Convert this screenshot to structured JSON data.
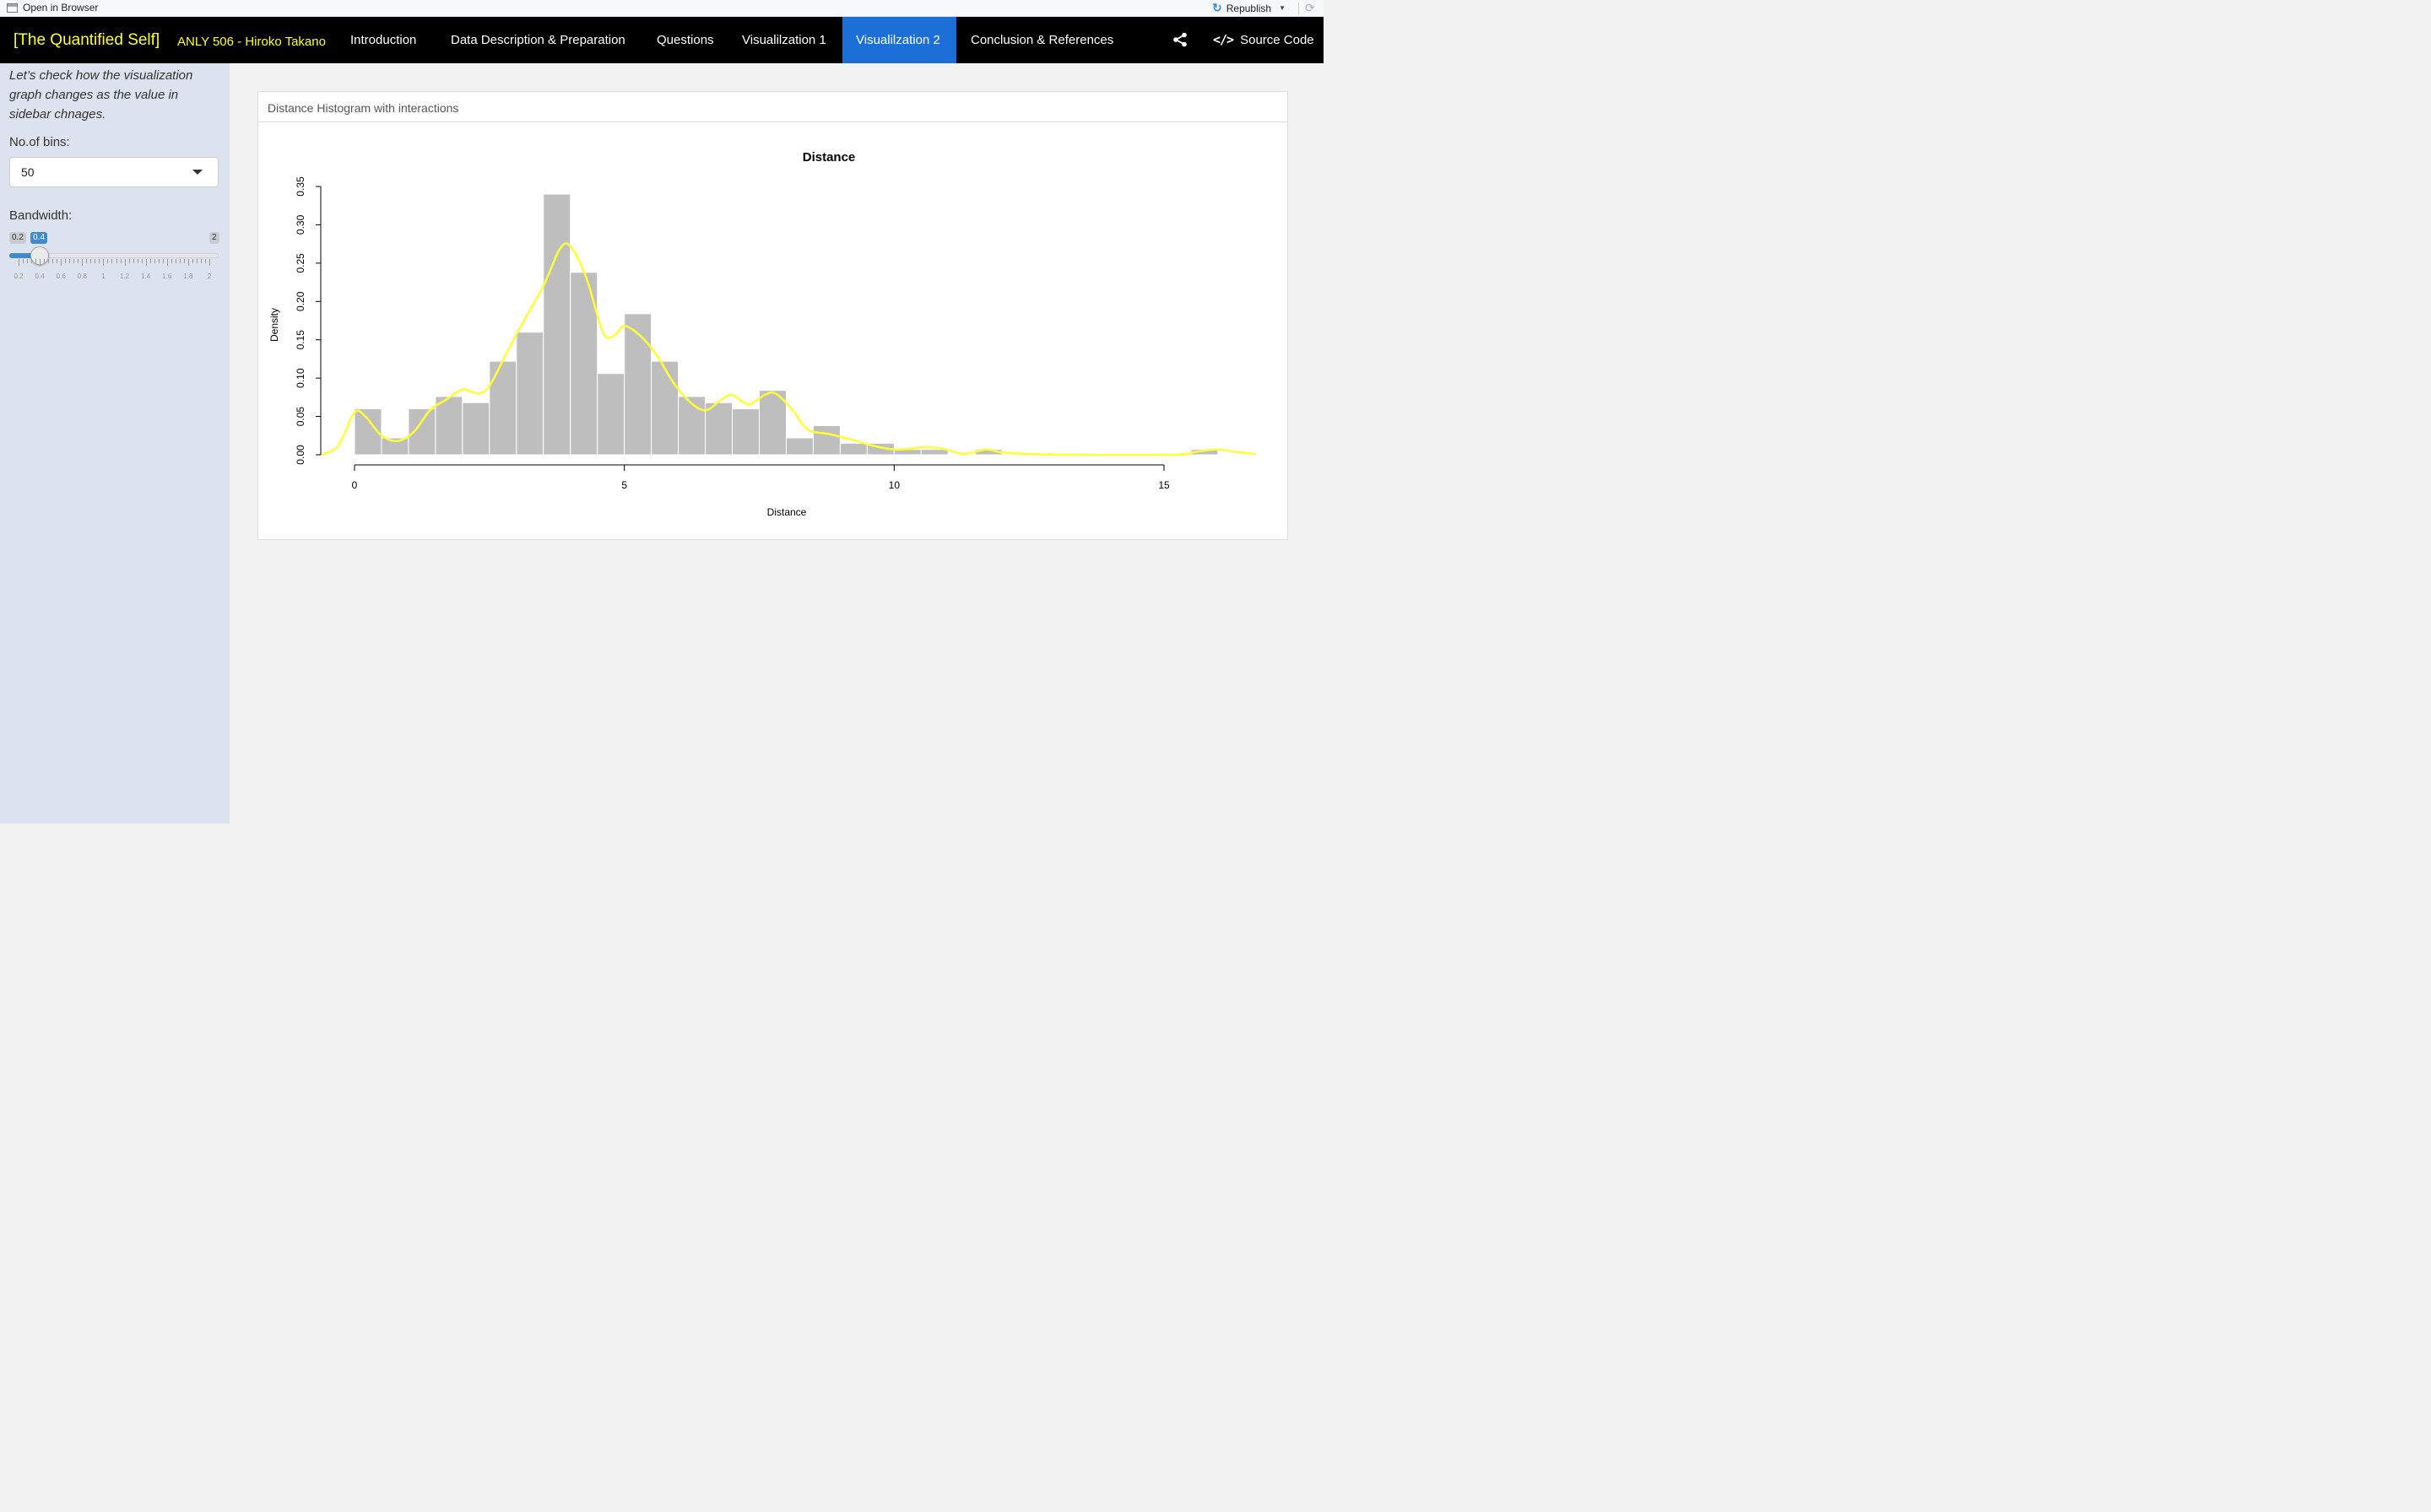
{
  "viewer": {
    "open_label": "Open in Browser",
    "republish_label": "Republish",
    "icons": [
      "open-window-icon",
      "republish-icon",
      "caret-down-icon",
      "refresh-icon"
    ]
  },
  "navbar": {
    "brand": "[The Quantified Self]",
    "subtitle": "ANLY 506 - Hiroko Takano",
    "items": [
      {
        "label": "Introduction"
      },
      {
        "label": "Data Description & Preparation"
      },
      {
        "label": "Questions"
      },
      {
        "label": "Visualilzation 1"
      },
      {
        "label": "Visualilzation 2",
        "active": true
      },
      {
        "label": "Conclusion & References"
      }
    ],
    "source_label": "Source Code",
    "colors": {
      "bg": "#000000",
      "brand": "#ffff33",
      "active": "#1c6fd6"
    }
  },
  "sidebar": {
    "intro": "Let’s check how the visualization graph changes as the value in sidebar chnages.",
    "bins_label": "No.of bins:",
    "bins_value": "50",
    "bandwidth_label": "Bandwidth:",
    "slider": {
      "min": 0.2,
      "max": 2,
      "value": 0.4,
      "min_label": "0.2",
      "max_label": "2",
      "value_label": "0.4",
      "tick_labels": [
        "0.2",
        "0.4",
        "0.6",
        "0.8",
        "1",
        "1.2",
        "1.4",
        "1.6",
        "1.8",
        "2"
      ]
    }
  },
  "card": {
    "title": "Distance Histogram with interactions"
  },
  "chart_data": {
    "type": "bar",
    "title": "Distance",
    "xlabel": "Distance",
    "ylabel": "Density",
    "xlim": [
      0,
      16
    ],
    "ylim": [
      0,
      0.35
    ],
    "x_ticks": [
      0,
      5,
      10,
      15
    ],
    "y_ticks": [
      "0.00",
      "0.05",
      "0.10",
      "0.15",
      "0.20",
      "0.25",
      "0.30",
      "0.35"
    ],
    "bin_width": 0.5,
    "bins": [
      {
        "x0": 0.0,
        "value": 0.06
      },
      {
        "x0": 0.5,
        "value": 0.022
      },
      {
        "x0": 1.0,
        "value": 0.06
      },
      {
        "x0": 1.5,
        "value": 0.076
      },
      {
        "x0": 2.0,
        "value": 0.068
      },
      {
        "x0": 2.5,
        "value": 0.122
      },
      {
        "x0": 3.0,
        "value": 0.16
      },
      {
        "x0": 3.5,
        "value": 0.34
      },
      {
        "x0": 4.0,
        "value": 0.238
      },
      {
        "x0": 4.5,
        "value": 0.106
      },
      {
        "x0": 5.0,
        "value": 0.184
      },
      {
        "x0": 5.5,
        "value": 0.122
      },
      {
        "x0": 6.0,
        "value": 0.076
      },
      {
        "x0": 6.5,
        "value": 0.068
      },
      {
        "x0": 7.0,
        "value": 0.06
      },
      {
        "x0": 7.5,
        "value": 0.084
      },
      {
        "x0": 8.0,
        "value": 0.022
      },
      {
        "x0": 8.5,
        "value": 0.038
      },
      {
        "x0": 9.0,
        "value": 0.015
      },
      {
        "x0": 9.5,
        "value": 0.015
      },
      {
        "x0": 10.0,
        "value": 0.007
      },
      {
        "x0": 10.5,
        "value": 0.007
      },
      {
        "x0": 11.5,
        "value": 0.007
      },
      {
        "x0": 15.5,
        "value": 0.007
      }
    ],
    "density_curve": {
      "color": "#ffff33",
      "points": [
        [
          -0.6,
          0.0
        ],
        [
          -0.3,
          0.012
        ],
        [
          0.0,
          0.055
        ],
        [
          0.2,
          0.05
        ],
        [
          0.5,
          0.025
        ],
        [
          0.8,
          0.018
        ],
        [
          1.1,
          0.03
        ],
        [
          1.4,
          0.058
        ],
        [
          1.7,
          0.072
        ],
        [
          2.0,
          0.085
        ],
        [
          2.3,
          0.08
        ],
        [
          2.5,
          0.09
        ],
        [
          2.8,
          0.13
        ],
        [
          3.1,
          0.17
        ],
        [
          3.5,
          0.22
        ],
        [
          3.8,
          0.268
        ],
        [
          4.0,
          0.272
        ],
        [
          4.3,
          0.23
        ],
        [
          4.6,
          0.16
        ],
        [
          4.8,
          0.155
        ],
        [
          5.0,
          0.168
        ],
        [
          5.3,
          0.155
        ],
        [
          5.6,
          0.13
        ],
        [
          5.9,
          0.095
        ],
        [
          6.2,
          0.07
        ],
        [
          6.5,
          0.058
        ],
        [
          6.8,
          0.072
        ],
        [
          7.0,
          0.078
        ],
        [
          7.3,
          0.066
        ],
        [
          7.6,
          0.078
        ],
        [
          7.8,
          0.08
        ],
        [
          8.1,
          0.06
        ],
        [
          8.4,
          0.033
        ],
        [
          8.8,
          0.027
        ],
        [
          9.2,
          0.02
        ],
        [
          9.6,
          0.012
        ],
        [
          10.0,
          0.007
        ],
        [
          10.3,
          0.008
        ],
        [
          10.6,
          0.01
        ],
        [
          10.9,
          0.008
        ],
        [
          11.3,
          0.001
        ],
        [
          11.7,
          0.007
        ],
        [
          12.0,
          0.003
        ],
        [
          12.5,
          0.001
        ],
        [
          13.5,
          0.0
        ],
        [
          15.2,
          0.0
        ],
        [
          15.6,
          0.004
        ],
        [
          16.0,
          0.007
        ],
        [
          16.3,
          0.004
        ],
        [
          16.7,
          0.001
        ]
      ]
    }
  }
}
